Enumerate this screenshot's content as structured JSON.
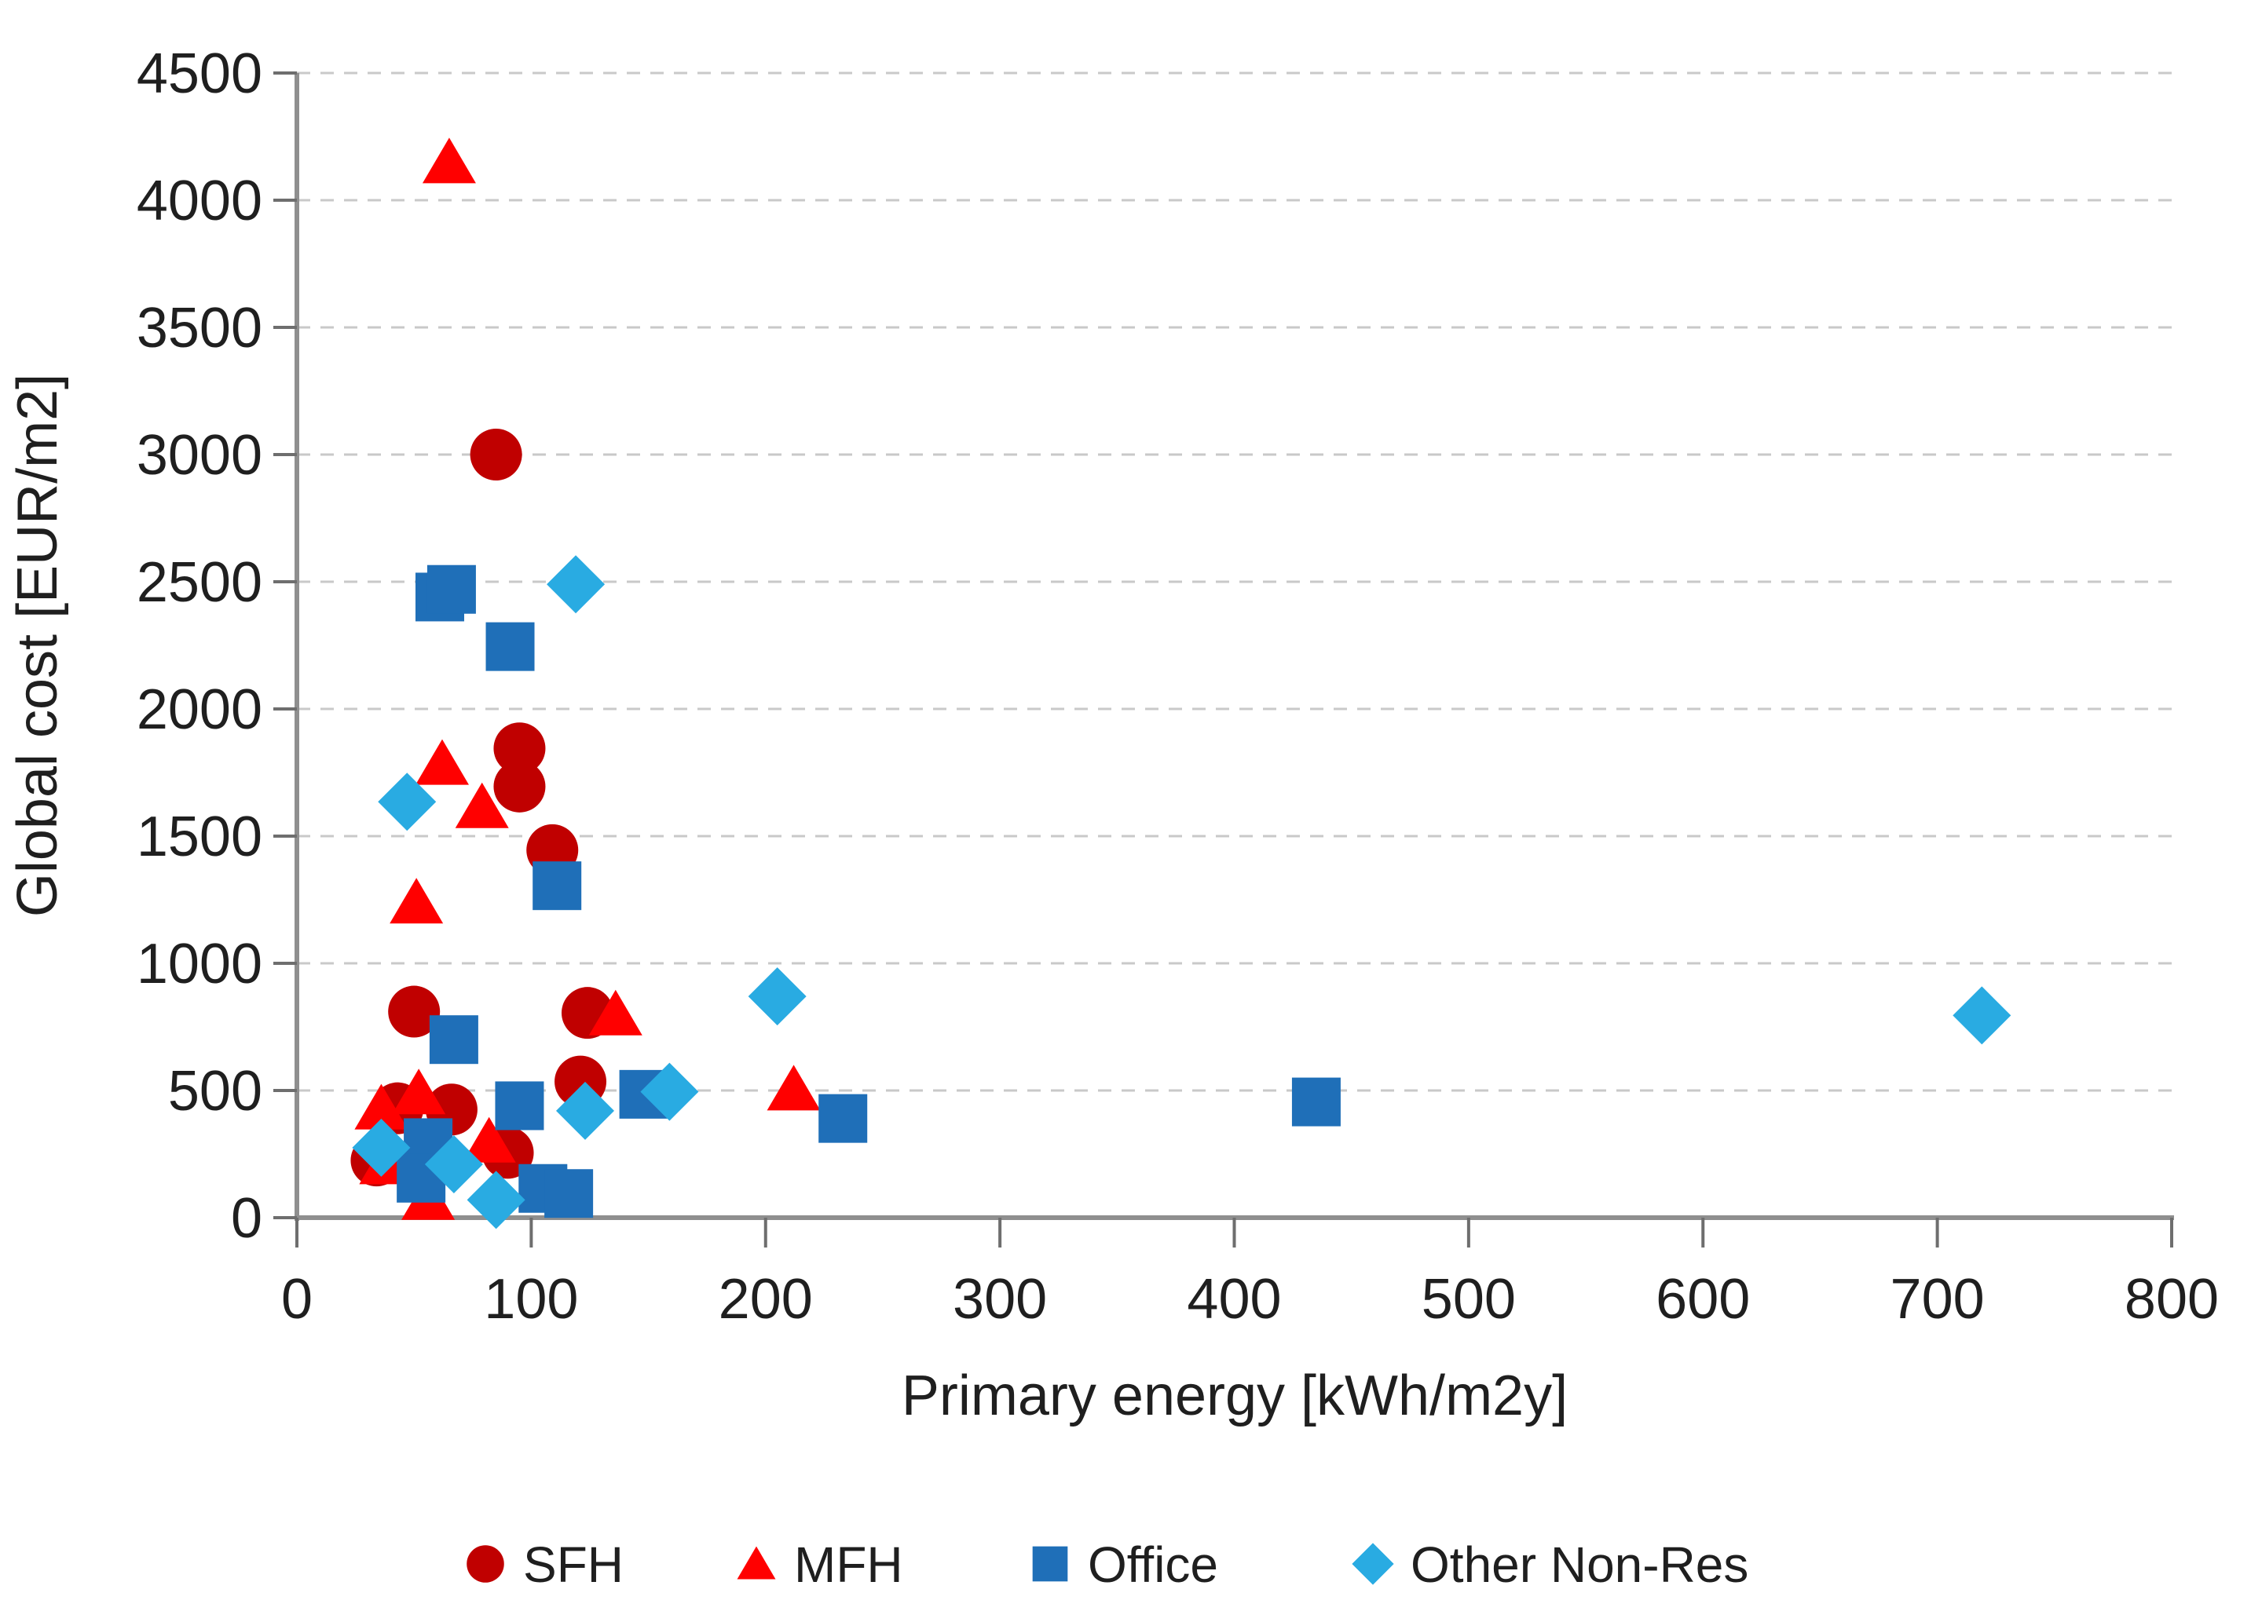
{
  "figure": {
    "background": "#FFFFFF"
  },
  "chart_data": {
    "type": "scatter",
    "title": "",
    "xlabel": "Primary energy [kWh/m2y]",
    "ylabel": "Global cost [EUR/m2]",
    "xlim": [
      0,
      800
    ],
    "ylim": [
      0,
      4500
    ],
    "x_ticks": [
      0,
      100,
      200,
      300,
      400,
      500,
      600,
      700,
      800
    ],
    "y_ticks": [
      0,
      500,
      1000,
      1500,
      2000,
      2500,
      3000,
      3500,
      4000,
      4500
    ],
    "grid": "horizontal-dashed",
    "legend_position": "bottom",
    "series": [
      {
        "name": "SFH",
        "marker": "circle",
        "color": "#C00000",
        "points": [
          [
            85,
            3000
          ],
          [
            95,
            1845
          ],
          [
            95,
            1695
          ],
          [
            109,
            1445
          ],
          [
            50,
            810
          ],
          [
            124,
            805
          ],
          [
            121,
            535
          ],
          [
            43,
            430
          ],
          [
            66,
            425
          ],
          [
            90,
            255
          ],
          [
            34,
            225
          ]
        ]
      },
      {
        "name": "MFH",
        "marker": "triangle",
        "color": "#FF0000",
        "points": [
          [
            65,
            4150
          ],
          [
            62,
            1785
          ],
          [
            79,
            1615
          ],
          [
            51,
            1240
          ],
          [
            136,
            800
          ],
          [
            212,
            505
          ],
          [
            52,
            490
          ],
          [
            36,
            430
          ],
          [
            82,
            300
          ],
          [
            38,
            215
          ],
          [
            56,
            75
          ]
        ]
      },
      {
        "name": "Office",
        "marker": "square",
        "color": "#1F6FB8",
        "points": [
          [
            61,
            2440
          ],
          [
            66,
            2470
          ],
          [
            91,
            2245
          ],
          [
            111,
            1305
          ],
          [
            67,
            700
          ],
          [
            148,
            485
          ],
          [
            95,
            440
          ],
          [
            233,
            390
          ],
          [
            435,
            455
          ],
          [
            56,
            295
          ],
          [
            53,
            155
          ],
          [
            105,
            115
          ],
          [
            116,
            95
          ]
        ]
      },
      {
        "name": "Other Non-Res",
        "marker": "diamond",
        "color": "#29ABE2",
        "points": [
          [
            119,
            2490
          ],
          [
            47,
            1635
          ],
          [
            205,
            870
          ],
          [
            719,
            795
          ],
          [
            159,
            495
          ],
          [
            123,
            420
          ],
          [
            36,
            275
          ],
          [
            67,
            210
          ],
          [
            85,
            70
          ]
        ]
      }
    ]
  },
  "style": {
    "axis_color": "#8F8F8F",
    "tick_color": "#6E6E6E",
    "grid_color": "#C9C9C9",
    "text_color": "#1F1F1F"
  }
}
